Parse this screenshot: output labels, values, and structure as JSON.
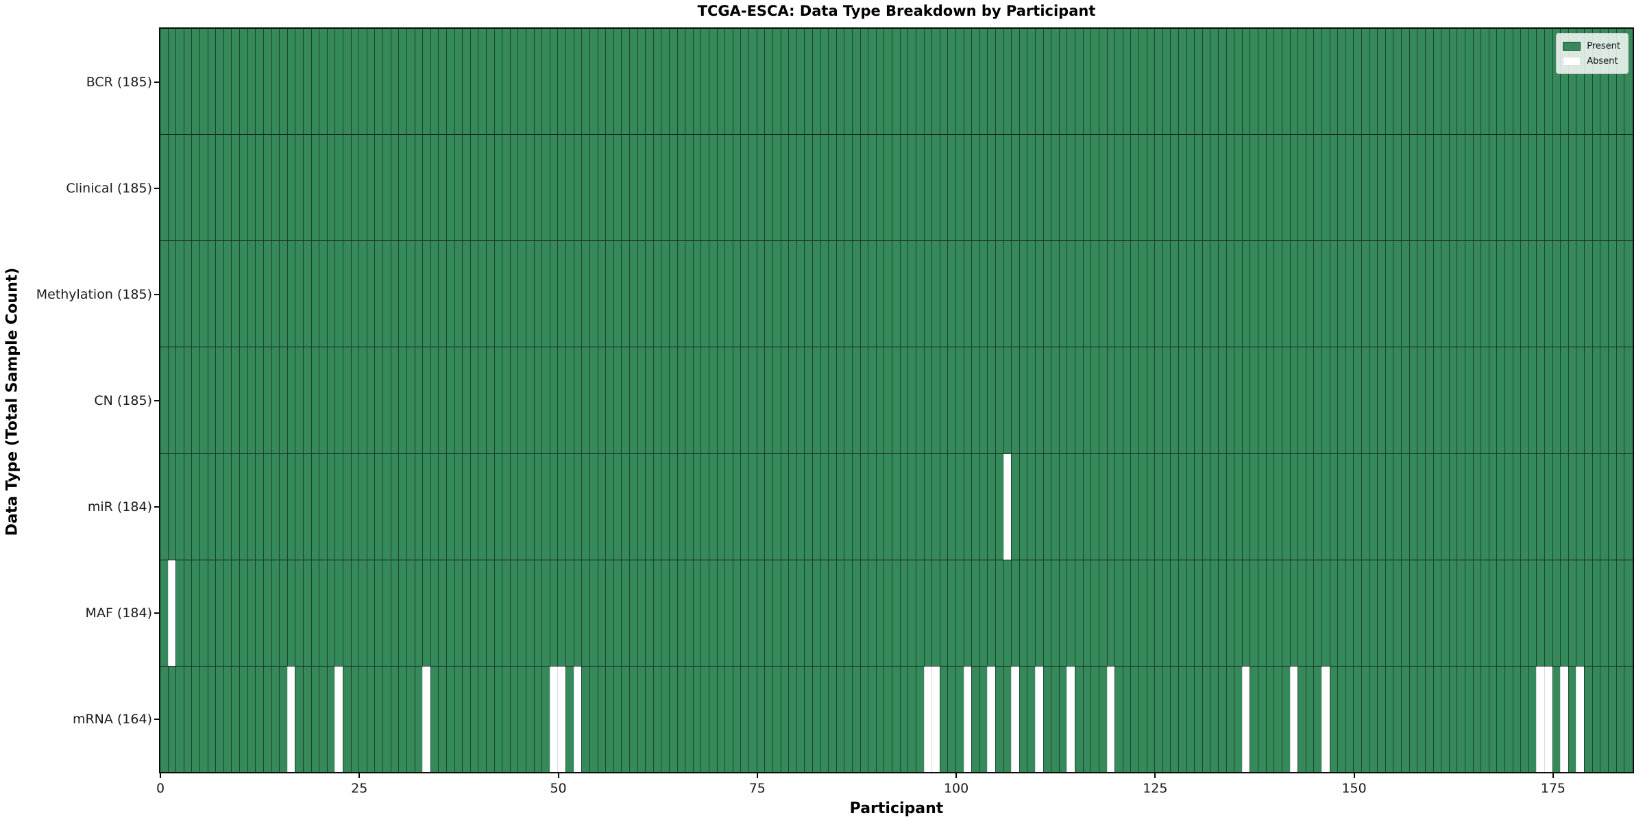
{
  "title": "TCGA-ESCA: Data Type Breakdown by Participant",
  "legend": {
    "present_label": "Present",
    "absent_label": "Absent"
  },
  "colors": {
    "present": "#35895a",
    "absent": "#ffffff",
    "cell_edge": "rgba(0,0,0,0.50)",
    "axis": "#0a0a0a"
  },
  "chart_data": {
    "type": "heatmap",
    "title": "TCGA-ESCA: Data Type Breakdown by Participant",
    "xlabel": "Participant",
    "ylabel": "Data Type (Total Sample Count)",
    "n_participants": 185,
    "x_range": [
      0,
      185
    ],
    "x_ticks": [
      0,
      25,
      50,
      75,
      100,
      125,
      150,
      175
    ],
    "legend_position": "upper-right",
    "grid": "cell-edges",
    "states": {
      "present": 1,
      "absent": 0
    },
    "rows": [
      {
        "label": "BCR (185)",
        "name": "BCR",
        "present_count": 185,
        "absent_participants": []
      },
      {
        "label": "Clinical (185)",
        "name": "Clinical",
        "present_count": 185,
        "absent_participants": []
      },
      {
        "label": "Methylation (185)",
        "name": "Methylation",
        "present_count": 185,
        "absent_participants": []
      },
      {
        "label": "CN (185)",
        "name": "CN",
        "present_count": 185,
        "absent_participants": []
      },
      {
        "label": "miR (184)",
        "name": "miR",
        "present_count": 184,
        "absent_participants": [
          106
        ]
      },
      {
        "label": "MAF (184)",
        "name": "MAF",
        "present_count": 184,
        "absent_participants": [
          1
        ]
      },
      {
        "label": "mRNA (164)",
        "name": "mRNA",
        "present_count": 164,
        "absent_participants": [
          16,
          22,
          33,
          49,
          50,
          52,
          96,
          97,
          101,
          104,
          107,
          110,
          114,
          119,
          136,
          142,
          146,
          173,
          174,
          176,
          178
        ]
      }
    ]
  }
}
